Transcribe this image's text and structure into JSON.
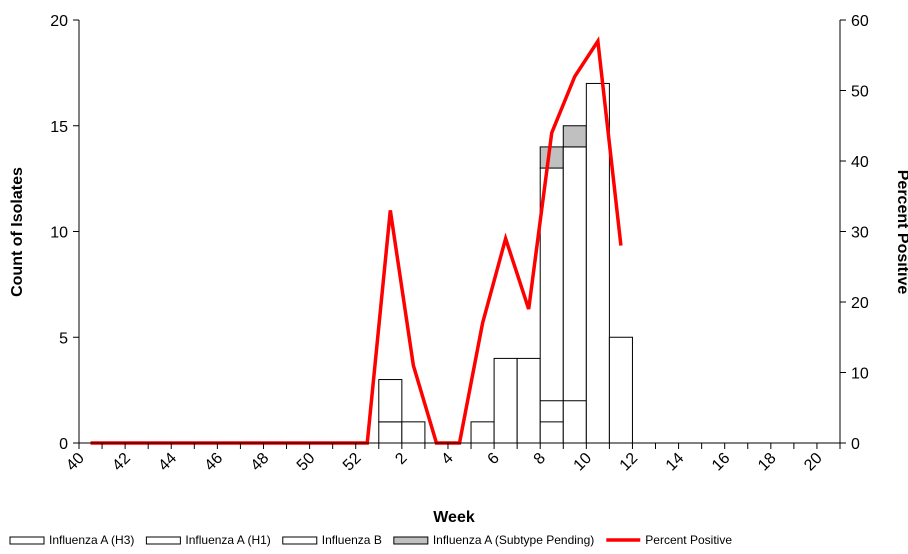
{
  "chart_data": {
    "type": "bar",
    "categories": [
      "40",
      "41",
      "42",
      "43",
      "44",
      "45",
      "46",
      "47",
      "48",
      "49",
      "50",
      "51",
      "52",
      "1",
      "2",
      "3",
      "4",
      "5",
      "6",
      "7",
      "8",
      "9",
      "10",
      "11",
      "12",
      "13",
      "14",
      "15",
      "16",
      "17",
      "18",
      "19",
      "20"
    ],
    "x_tick_labels": [
      "40",
      "42",
      "44",
      "46",
      "48",
      "50",
      "52",
      "2",
      "4",
      "6",
      "8",
      "10",
      "12",
      "14",
      "16",
      "18",
      "20"
    ],
    "xlabel": "Week",
    "ylabel": "Count of Isolates",
    "y2label": "Percent Positive",
    "ylim": [
      0,
      20
    ],
    "y2lim": [
      0,
      60
    ],
    "y_ticks": [
      0,
      5,
      10,
      15,
      20
    ],
    "y2_ticks": [
      0,
      10,
      20,
      30,
      40,
      50,
      60
    ],
    "stacked": true,
    "series": [
      {
        "name": "Influenza A (H3)",
        "axis": "left",
        "kind": "bar",
        "color": "#ffffff",
        "values": [
          0,
          0,
          0,
          0,
          0,
          0,
          0,
          0,
          0,
          0,
          0,
          0,
          0,
          1,
          1,
          0,
          0,
          1,
          4,
          4,
          13,
          14,
          17,
          5,
          0,
          0,
          0,
          0,
          0,
          0,
          0,
          0,
          0
        ]
      },
      {
        "name": "Influenza A (H1)",
        "axis": "left",
        "kind": "bar",
        "color": "#ffffff",
        "values": [
          0,
          0,
          0,
          0,
          0,
          0,
          0,
          0,
          0,
          0,
          0,
          0,
          0,
          0,
          0,
          0,
          0,
          0,
          0,
          0,
          0,
          0,
          0,
          0,
          0,
          0,
          0,
          0,
          0,
          0,
          0,
          0,
          0
        ]
      },
      {
        "name": "Influenza B",
        "axis": "left",
        "kind": "bar",
        "color": "#ffffff",
        "values": [
          0,
          0,
          0,
          0,
          0,
          0,
          0,
          0,
          0,
          0,
          0,
          0,
          0,
          2,
          0,
          0,
          0,
          0,
          0,
          0,
          0,
          0,
          0,
          0,
          0,
          0,
          0,
          0,
          0,
          0,
          0,
          0,
          0
        ]
      },
      {
        "name": "Influenza A (Subtype Pending)",
        "axis": "left",
        "kind": "bar",
        "color": "#c0c0c0",
        "values": [
          0,
          0,
          0,
          0,
          0,
          0,
          0,
          0,
          0,
          0,
          0,
          0,
          0,
          0,
          0,
          0,
          0,
          0,
          0,
          0,
          1,
          1,
          0,
          0,
          0,
          0,
          0,
          0,
          0,
          0,
          0,
          0,
          0
        ]
      },
      {
        "name": "Percent Positive",
        "axis": "right",
        "kind": "line",
        "color": "#ff0000",
        "values": [
          0,
          0,
          0,
          0,
          0,
          0,
          0,
          0,
          0,
          0,
          0,
          0,
          0,
          33,
          11,
          0,
          0,
          17,
          29,
          19,
          44,
          52,
          57,
          28,
          null,
          null,
          null,
          null,
          null,
          null,
          null,
          null,
          null
        ]
      }
    ],
    "annotations": [
      {
        "category": "8",
        "mark_at": 1
      },
      {
        "category": "8",
        "mark_at": 2
      },
      {
        "category": "9",
        "mark_at": 2
      }
    ],
    "legend": "bottom",
    "grid": false
  }
}
